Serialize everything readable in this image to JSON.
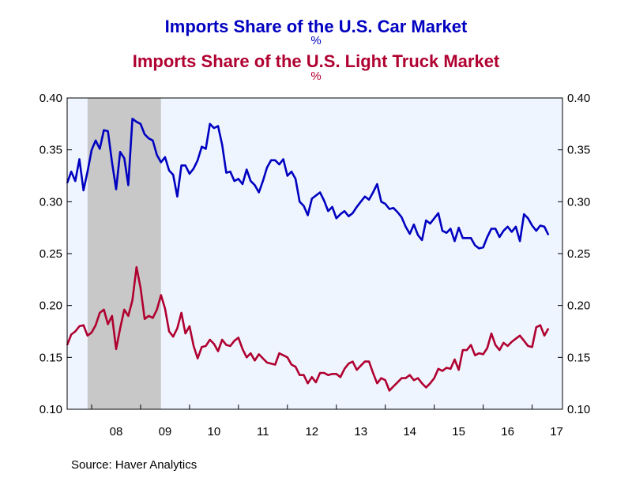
{
  "chart_data": {
    "type": "line",
    "title": "Imports Share of the U.S. Car Market",
    "title_unit": "%",
    "subtitle": "Imports Share of the U.S. Light Truck Market",
    "subtitle_unit": "%",
    "source": "Source:  Haver Analytics",
    "ylim": [
      0.1,
      0.4
    ],
    "yticks": [
      "0.10",
      "0.15",
      "0.20",
      "0.25",
      "0.30",
      "0.35",
      "0.40"
    ],
    "xlim": [
      2007.5,
      2017.62
    ],
    "xtick_labels": [
      "08",
      "09",
      "10",
      "11",
      "12",
      "13",
      "14",
      "15",
      "16",
      "17"
    ],
    "recession_band": [
      2007.917,
      2009.417
    ],
    "grid": false,
    "plot_background": "#eef5ff",
    "recession_color": "#c8c8c8",
    "start": 2007.5,
    "step_months": 1,
    "series": [
      {
        "name": "Imports Share of the U.S. Car Market",
        "color": "#0000c0",
        "values": [
          0.318,
          0.329,
          0.32,
          0.341,
          0.311,
          0.329,
          0.35,
          0.359,
          0.351,
          0.369,
          0.368,
          0.338,
          0.312,
          0.348,
          0.342,
          0.316,
          0.38,
          0.377,
          0.375,
          0.365,
          0.361,
          0.359,
          0.345,
          0.338,
          0.343,
          0.33,
          0.326,
          0.305,
          0.335,
          0.335,
          0.327,
          0.332,
          0.34,
          0.353,
          0.351,
          0.375,
          0.371,
          0.373,
          0.355,
          0.328,
          0.329,
          0.32,
          0.322,
          0.317,
          0.331,
          0.32,
          0.316,
          0.309,
          0.32,
          0.333,
          0.34,
          0.34,
          0.336,
          0.341,
          0.325,
          0.329,
          0.322,
          0.3,
          0.296,
          0.287,
          0.303,
          0.306,
          0.309,
          0.301,
          0.291,
          0.295,
          0.284,
          0.288,
          0.291,
          0.286,
          0.289,
          0.295,
          0.3,
          0.305,
          0.302,
          0.309,
          0.317,
          0.3,
          0.298,
          0.293,
          0.294,
          0.29,
          0.285,
          0.276,
          0.269,
          0.278,
          0.268,
          0.263,
          0.282,
          0.279,
          0.284,
          0.289,
          0.272,
          0.27,
          0.274,
          0.262,
          0.275,
          0.265,
          0.265,
          0.265,
          0.258,
          0.255,
          0.256,
          0.266,
          0.274,
          0.274,
          0.266,
          0.272,
          0.276,
          0.271,
          0.276,
          0.262,
          0.288,
          0.284,
          0.277,
          0.272,
          0.277,
          0.276,
          0.268
        ]
      },
      {
        "name": "Imports Share of the U.S. Light Truck Market",
        "color": "#b00030",
        "values": [
          0.162,
          0.172,
          0.175,
          0.18,
          0.181,
          0.171,
          0.174,
          0.181,
          0.193,
          0.196,
          0.182,
          0.19,
          0.158,
          0.178,
          0.196,
          0.19,
          0.205,
          0.237,
          0.217,
          0.187,
          0.19,
          0.188,
          0.196,
          0.21,
          0.197,
          0.175,
          0.17,
          0.178,
          0.193,
          0.173,
          0.18,
          0.161,
          0.149,
          0.16,
          0.161,
          0.167,
          0.163,
          0.156,
          0.167,
          0.162,
          0.161,
          0.166,
          0.169,
          0.158,
          0.15,
          0.154,
          0.147,
          0.153,
          0.149,
          0.145,
          0.144,
          0.143,
          0.154,
          0.152,
          0.15,
          0.143,
          0.141,
          0.133,
          0.133,
          0.125,
          0.131,
          0.126,
          0.135,
          0.135,
          0.133,
          0.134,
          0.134,
          0.131,
          0.139,
          0.144,
          0.146,
          0.138,
          0.142,
          0.146,
          0.146,
          0.135,
          0.125,
          0.13,
          0.128,
          0.118,
          0.122,
          0.126,
          0.13,
          0.13,
          0.133,
          0.128,
          0.13,
          0.125,
          0.121,
          0.125,
          0.13,
          0.139,
          0.137,
          0.14,
          0.139,
          0.148,
          0.138,
          0.157,
          0.157,
          0.162,
          0.152,
          0.154,
          0.153,
          0.159,
          0.173,
          0.162,
          0.157,
          0.164,
          0.161,
          0.165,
          0.168,
          0.171,
          0.166,
          0.161,
          0.16,
          0.179,
          0.181,
          0.171,
          0.178
        ]
      }
    ]
  }
}
